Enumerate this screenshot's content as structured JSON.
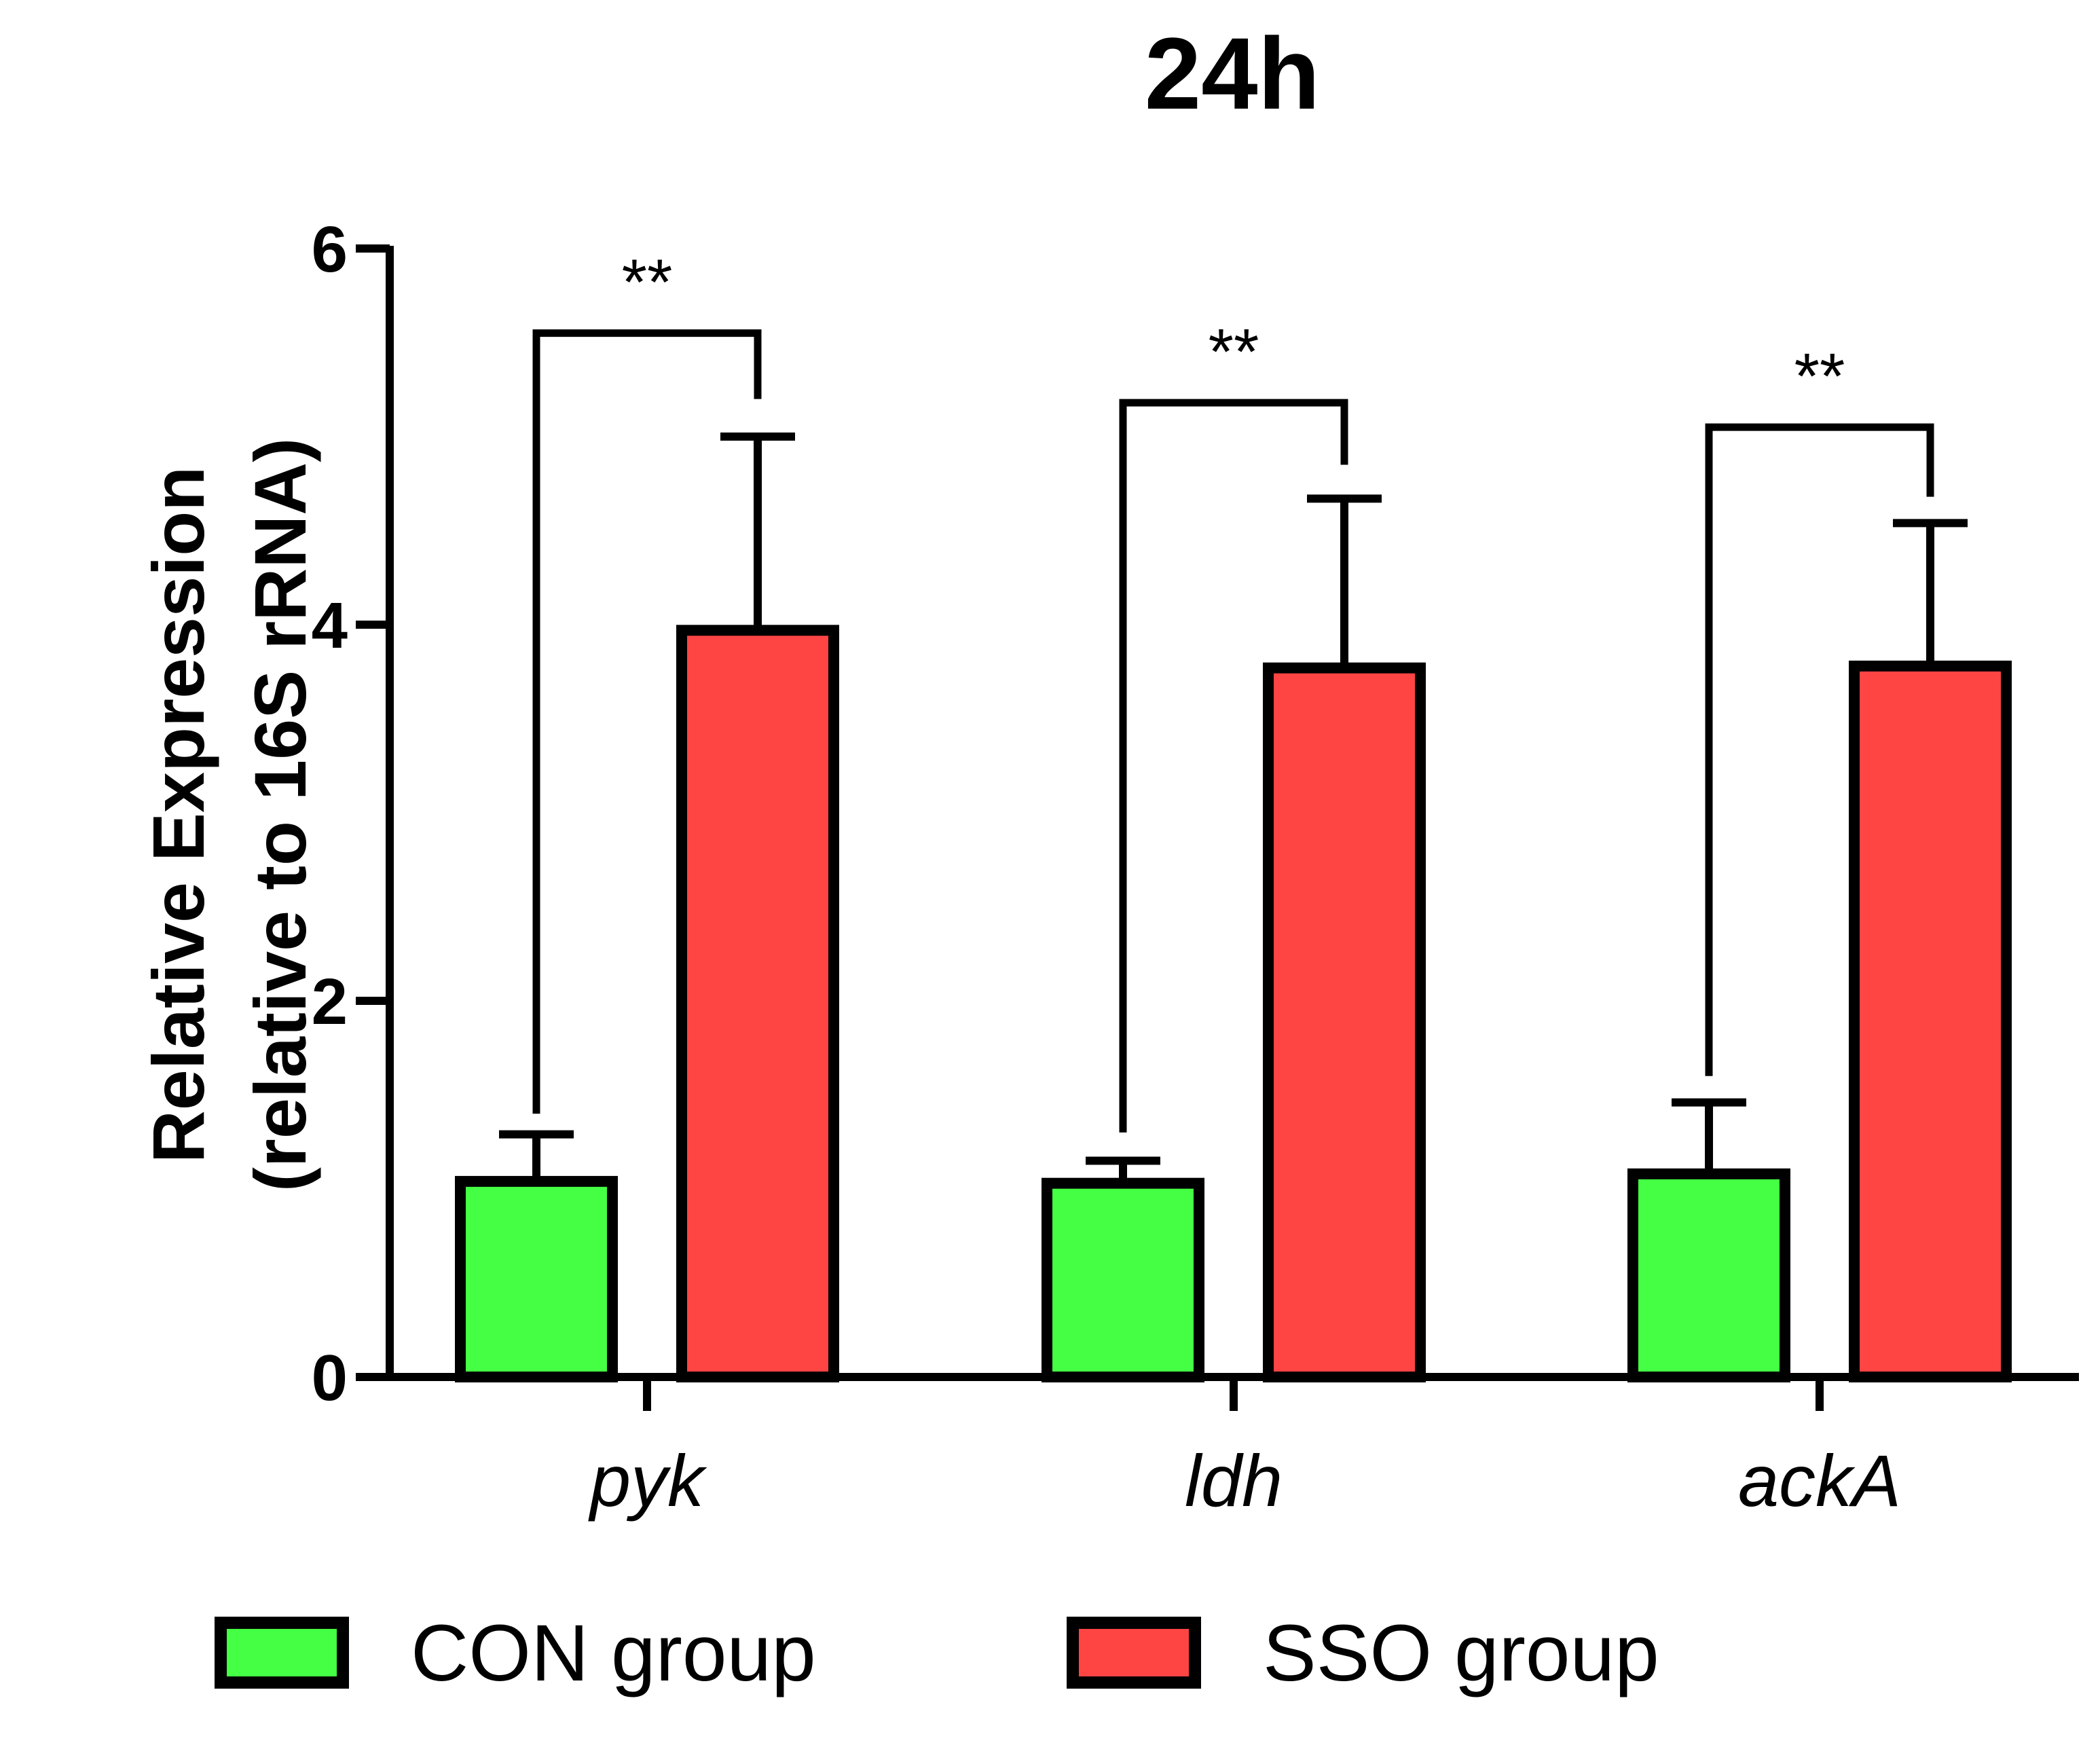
{
  "chart_data": {
    "type": "bar",
    "title": "24h",
    "ylabel_line1": "Relative Expression",
    "ylabel_line2": "(relative to 16S rRNA)",
    "xlabel": "",
    "ylim": [
      0,
      6
    ],
    "yticks": [
      "0",
      "2",
      "4",
      "6"
    ],
    "categories": [
      "pyk",
      "ldh",
      "ackA"
    ],
    "series": [
      {
        "name": "CON group",
        "color": "#44ff44",
        "values": [
          1.04,
          1.03,
          1.08
        ],
        "errors": [
          0.25,
          0.12,
          0.38
        ]
      },
      {
        "name": "SSO group",
        "color": "#ff4444",
        "values": [
          3.97,
          3.77,
          3.78
        ],
        "errors": [
          1.03,
          0.9,
          0.76
        ]
      }
    ],
    "significance": [
      {
        "category": "pyk",
        "label": "**",
        "con_top": 1.4,
        "sso_top": 5.2,
        "bracket_y": 5.55
      },
      {
        "category": "ldh",
        "label": "**",
        "con_top": 1.3,
        "sso_top": 4.85,
        "bracket_y": 5.18
      },
      {
        "category": "ackA",
        "label": "**",
        "con_top": 1.6,
        "sso_top": 4.68,
        "bracket_y": 5.05
      }
    ],
    "legend": [
      "CON group",
      "SSO group"
    ],
    "legend_position": "bottom"
  }
}
